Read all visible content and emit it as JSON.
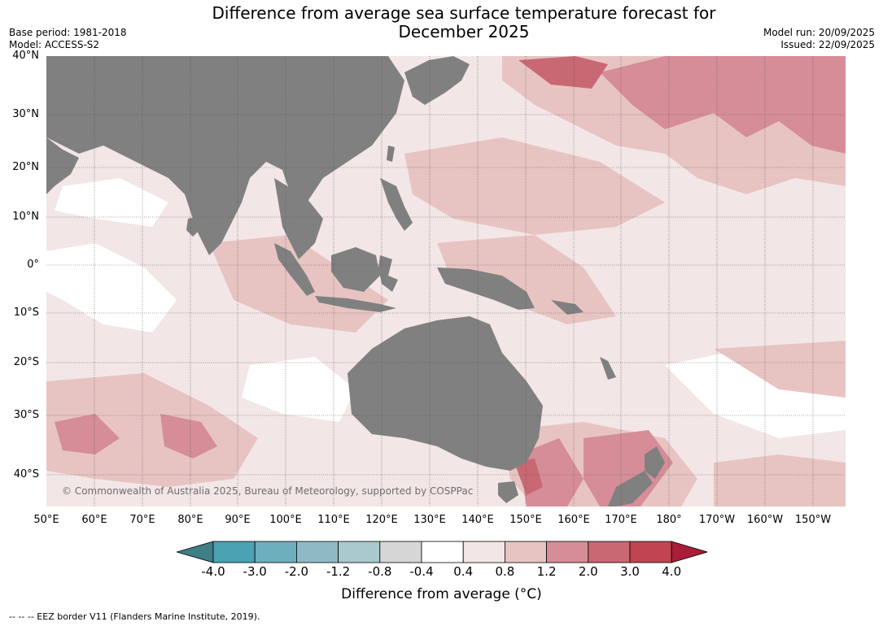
{
  "header": {
    "title_line1": "Difference from average sea surface temperature forecast for",
    "title_line2": "December 2025",
    "base_period": "Base period: 1981-2018",
    "model": "Model: ACCESS-S2",
    "model_run": "Model run: 20/09/2025",
    "issued": "Issued: 22/09/2025"
  },
  "map": {
    "lat_labels": [
      "40°N",
      "30°N",
      "20°N",
      "10°N",
      "0°",
      "10°S",
      "20°S",
      "30°S",
      "40°S"
    ],
    "lon_labels": [
      "50°E",
      "60°E",
      "70°E",
      "80°E",
      "90°E",
      "100°E",
      "110°E",
      "120°E",
      "130°E",
      "140°E",
      "150°E",
      "160°E",
      "170°E",
      "180°",
      "170°W",
      "160°W",
      "150°W"
    ],
    "copyright": "© Commonwealth of Australia 2025, Bureau of Meteorology, supported by COSPPac",
    "land_color": "#808080"
  },
  "colorbar": {
    "colors": [
      "#3f7f86",
      "#4aa2b3",
      "#6eafbd",
      "#8fbac5",
      "#a9c9cc",
      "#d6d6d6",
      "#ffffff",
      "#f3e6e6",
      "#e7c4c2",
      "#d68d97",
      "#c86873",
      "#c04452",
      "#a91d38"
    ],
    "ticks": [
      "-4.0",
      "-3.0",
      "-2.0",
      "-1.2",
      "-0.8",
      "-0.4",
      "0.4",
      "0.8",
      "1.2",
      "2.0",
      "3.0",
      "4.0"
    ],
    "label": "Difference from average (°C)"
  },
  "footnote": "--  --  -- EEZ border V11 (Flanders Marine Institute, 2019)."
}
